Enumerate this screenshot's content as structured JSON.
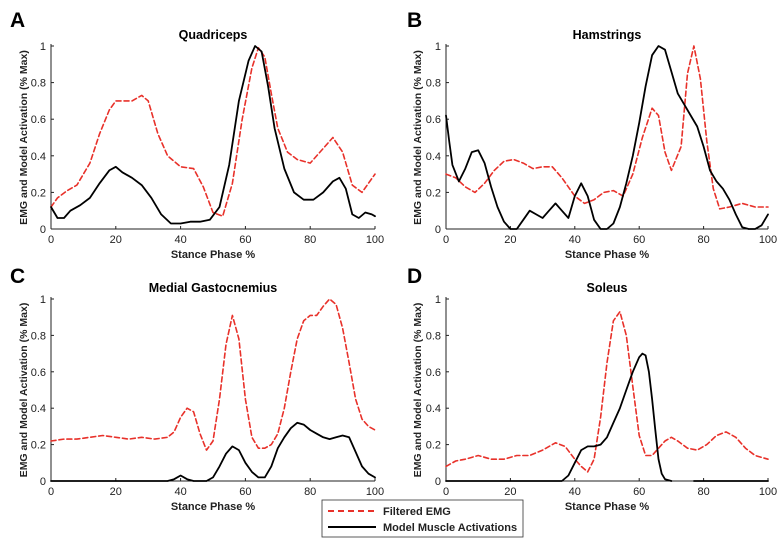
{
  "legend": {
    "placement": "bottom-center",
    "entries": [
      {
        "label": "Filtered EMG",
        "color": "#e8312a",
        "dash": true
      },
      {
        "label": "Model Muscle Activations",
        "color": "#000000",
        "dash": false
      }
    ]
  },
  "chart_data": [
    {
      "type": "line",
      "panel": "A",
      "title": "Quadriceps",
      "xlabel": "Stance Phase %",
      "ylabel": "EMG and Model Activation (% Max)",
      "xlim": [
        0,
        100
      ],
      "ylim": [
        0,
        1
      ],
      "xticks": [
        0,
        20,
        40,
        60,
        80,
        100
      ],
      "yticks": [
        0,
        0.2,
        0.4,
        0.6,
        0.8,
        1
      ],
      "ytick_labels": [
        "0",
        "0.2",
        "0.4",
        "0.6",
        "0.8",
        "1"
      ],
      "series": [
        {
          "name": "Filtered EMG",
          "color": "#e8312a",
          "x": [
            0,
            2,
            5,
            8,
            12,
            15,
            18,
            20,
            22,
            25,
            28,
            30,
            33,
            36,
            40,
            44,
            47,
            50,
            53,
            56,
            59,
            62,
            64,
            66,
            68,
            70,
            73,
            76,
            80,
            84,
            87,
            90,
            93,
            96,
            100
          ],
          "y": [
            0.12,
            0.17,
            0.21,
            0.24,
            0.36,
            0.52,
            0.65,
            0.7,
            0.7,
            0.7,
            0.73,
            0.7,
            0.52,
            0.4,
            0.34,
            0.33,
            0.23,
            0.09,
            0.07,
            0.25,
            0.6,
            0.88,
            0.99,
            0.94,
            0.74,
            0.55,
            0.42,
            0.38,
            0.36,
            0.44,
            0.5,
            0.42,
            0.24,
            0.2,
            0.3
          ]
        },
        {
          "name": "Model Muscle Activations",
          "color": "#000000",
          "x": [
            0,
            2,
            4,
            6,
            9,
            12,
            15,
            18,
            20,
            22,
            25,
            28,
            31,
            34,
            37,
            40,
            43,
            46,
            49,
            52,
            55,
            58,
            61,
            63,
            65,
            67,
            69,
            72,
            75,
            78,
            81,
            84,
            87,
            89,
            91,
            93,
            95,
            97,
            99,
            100
          ],
          "y": [
            0.12,
            0.06,
            0.06,
            0.1,
            0.13,
            0.17,
            0.25,
            0.32,
            0.34,
            0.31,
            0.28,
            0.24,
            0.17,
            0.08,
            0.03,
            0.03,
            0.04,
            0.04,
            0.05,
            0.12,
            0.35,
            0.7,
            0.92,
            1.0,
            0.97,
            0.78,
            0.55,
            0.33,
            0.2,
            0.16,
            0.16,
            0.2,
            0.26,
            0.28,
            0.22,
            0.08,
            0.06,
            0.09,
            0.08,
            0.07
          ]
        }
      ]
    },
    {
      "type": "line",
      "panel": "B",
      "title": "Hamstrings",
      "xlabel": "Stance Phase %",
      "ylabel": "EMG and Model Activation (% Max)",
      "xlim": [
        0,
        100
      ],
      "ylim": [
        0,
        1
      ],
      "xticks": [
        0,
        20,
        40,
        60,
        80,
        100
      ],
      "yticks": [
        0,
        0.2,
        0.4,
        0.6,
        0.8,
        1
      ],
      "ytick_labels": [
        "0",
        "0.2",
        "0.4",
        "0.6",
        "0.8",
        "1"
      ],
      "series": [
        {
          "name": "Filtered EMG",
          "color": "#e8312a",
          "x": [
            0,
            3,
            6,
            9,
            12,
            15,
            18,
            21,
            24,
            27,
            30,
            33,
            36,
            40,
            43,
            46,
            49,
            52,
            55,
            58,
            61,
            64,
            66,
            68,
            70,
            73,
            75,
            77,
            79,
            81,
            83,
            85,
            88,
            92,
            96,
            100
          ],
          "y": [
            0.3,
            0.28,
            0.23,
            0.2,
            0.25,
            0.32,
            0.37,
            0.38,
            0.36,
            0.33,
            0.34,
            0.34,
            0.28,
            0.18,
            0.14,
            0.16,
            0.2,
            0.21,
            0.18,
            0.3,
            0.5,
            0.66,
            0.62,
            0.42,
            0.32,
            0.45,
            0.85,
            1.0,
            0.82,
            0.48,
            0.22,
            0.11,
            0.12,
            0.14,
            0.12,
            0.12
          ]
        },
        {
          "name": "Model Muscle Activations",
          "color": "#000000",
          "x": [
            0,
            1,
            2,
            4,
            6,
            8,
            10,
            12,
            14,
            16,
            18,
            20,
            22,
            24,
            26,
            28,
            30,
            32,
            34,
            36,
            38,
            40,
            42,
            44,
            46,
            48,
            50,
            52,
            54,
            56,
            58,
            60,
            62,
            64,
            66,
            68,
            70,
            72,
            74,
            76,
            78,
            80,
            82,
            84,
            86,
            88,
            90,
            92,
            94,
            96,
            98,
            100
          ],
          "y": [
            0.62,
            0.48,
            0.35,
            0.26,
            0.33,
            0.42,
            0.43,
            0.36,
            0.23,
            0.12,
            0.04,
            0.0,
            0.0,
            0.05,
            0.1,
            0.08,
            0.06,
            0.1,
            0.14,
            0.1,
            0.06,
            0.18,
            0.25,
            0.18,
            0.05,
            0.0,
            0.0,
            0.03,
            0.12,
            0.25,
            0.4,
            0.58,
            0.78,
            0.95,
            1.0,
            0.98,
            0.86,
            0.74,
            0.68,
            0.62,
            0.56,
            0.45,
            0.32,
            0.26,
            0.22,
            0.16,
            0.08,
            0.01,
            0.0,
            0.0,
            0.02,
            0.08
          ]
        }
      ]
    },
    {
      "type": "line",
      "panel": "C",
      "title": "Medial Gastocnemius",
      "xlabel": "Stance Phase %",
      "ylabel": "EMG and Model Activation (% Max)",
      "xlim": [
        0,
        100
      ],
      "ylim": [
        0,
        1
      ],
      "xticks": [
        0,
        20,
        40,
        60,
        80,
        100
      ],
      "yticks": [
        0,
        0.2,
        0.4,
        0.6,
        0.8,
        1
      ],
      "ytick_labels": [
        "0",
        "0.2",
        "0.4",
        "0.6",
        "0.8",
        "1"
      ],
      "series": [
        {
          "name": "Filtered EMG",
          "color": "#e8312a",
          "x": [
            0,
            4,
            8,
            12,
            16,
            20,
            24,
            28,
            32,
            36,
            38,
            40,
            42,
            44,
            46,
            48,
            50,
            52,
            54,
            56,
            58,
            60,
            62,
            64,
            66,
            68,
            70,
            72,
            74,
            76,
            78,
            80,
            82,
            84,
            86,
            88,
            90,
            92,
            94,
            96,
            98,
            100
          ],
          "y": [
            0.22,
            0.23,
            0.23,
            0.24,
            0.25,
            0.24,
            0.23,
            0.24,
            0.23,
            0.24,
            0.27,
            0.35,
            0.4,
            0.38,
            0.26,
            0.17,
            0.22,
            0.45,
            0.75,
            0.91,
            0.78,
            0.45,
            0.24,
            0.18,
            0.18,
            0.2,
            0.26,
            0.4,
            0.6,
            0.78,
            0.88,
            0.91,
            0.91,
            0.96,
            1.0,
            0.97,
            0.84,
            0.65,
            0.45,
            0.34,
            0.3,
            0.28
          ]
        },
        {
          "name": "Model Muscle Activations",
          "color": "#000000",
          "x": [
            0,
            10,
            20,
            30,
            36,
            38,
            40,
            42,
            44,
            48,
            50,
            52,
            54,
            56,
            58,
            60,
            62,
            64,
            66,
            68,
            70,
            72,
            74,
            76,
            78,
            80,
            82,
            84,
            86,
            88,
            90,
            92,
            94,
            96,
            98,
            100
          ],
          "y": [
            0.0,
            0.0,
            0.0,
            0.0,
            0.0,
            0.01,
            0.03,
            0.01,
            0.0,
            0.0,
            0.02,
            0.08,
            0.15,
            0.19,
            0.17,
            0.1,
            0.05,
            0.02,
            0.02,
            0.08,
            0.18,
            0.24,
            0.29,
            0.32,
            0.31,
            0.28,
            0.26,
            0.24,
            0.23,
            0.24,
            0.25,
            0.24,
            0.16,
            0.08,
            0.04,
            0.02
          ]
        }
      ]
    },
    {
      "type": "line",
      "panel": "D",
      "title": "Soleus",
      "xlabel": "Stance Phase %",
      "ylabel": "EMG and Model Activation (% Max)",
      "xlim": [
        0,
        100
      ],
      "ylim": [
        0,
        1
      ],
      "xticks": [
        0,
        20,
        40,
        60,
        80,
        100
      ],
      "yticks": [
        0,
        0.2,
        0.4,
        0.6,
        0.8,
        1
      ],
      "ytick_labels": [
        "0",
        "0.2",
        "0.4",
        "0.6",
        "0.8",
        "1"
      ],
      "series": [
        {
          "name": "Filtered EMG",
          "color": "#e8312a",
          "x": [
            0,
            3,
            6,
            10,
            14,
            18,
            22,
            26,
            30,
            34,
            37,
            40,
            42,
            44,
            46,
            48,
            50,
            52,
            54,
            56,
            58,
            60,
            62,
            64,
            66,
            68,
            70,
            72,
            75,
            78,
            81,
            84,
            87,
            90,
            93,
            96,
            100
          ],
          "y": [
            0.08,
            0.11,
            0.12,
            0.14,
            0.12,
            0.12,
            0.14,
            0.14,
            0.17,
            0.21,
            0.19,
            0.12,
            0.08,
            0.05,
            0.12,
            0.35,
            0.65,
            0.88,
            0.93,
            0.8,
            0.52,
            0.25,
            0.14,
            0.14,
            0.18,
            0.22,
            0.24,
            0.22,
            0.18,
            0.17,
            0.2,
            0.25,
            0.27,
            0.24,
            0.18,
            0.14,
            0.12
          ]
        },
        {
          "name": "Model Muscle Activations",
          "color": "#000000",
          "x": [
            0,
            20,
            30,
            36,
            38,
            40,
            42,
            44,
            46,
            48,
            50,
            52,
            54,
            56,
            58,
            60,
            61,
            62,
            63,
            64,
            65,
            66,
            67,
            68,
            70
          ],
          "y": [
            0.0,
            0.0,
            0.0,
            0.0,
            0.03,
            0.1,
            0.17,
            0.19,
            0.19,
            0.2,
            0.24,
            0.32,
            0.4,
            0.5,
            0.6,
            0.68,
            0.7,
            0.69,
            0.6,
            0.45,
            0.28,
            0.12,
            0.04,
            0.01,
            0.0
          ]
        },
        {
          "name": "Model Muscle Activations",
          "color": "#000000",
          "x": [
            77,
            100
          ],
          "y": [
            0.0,
            0.0
          ]
        }
      ]
    }
  ]
}
